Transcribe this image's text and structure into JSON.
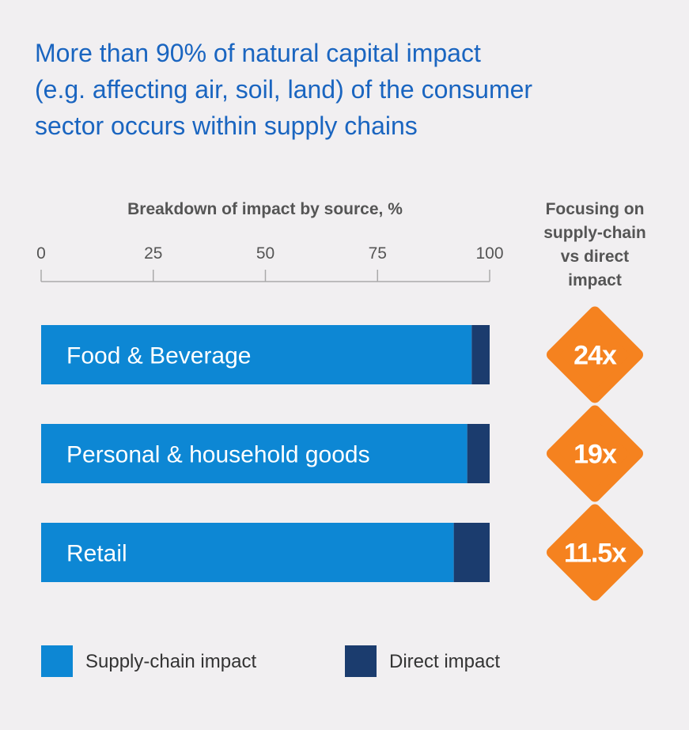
{
  "title": {
    "lines": [
      "More than 90% of natural capital impact",
      "(e.g. affecting air, soil, land) of the consumer",
      "sector occurs within supply chains"
    ]
  },
  "chart_data": {
    "type": "bar",
    "orientation": "horizontal",
    "stacked": true,
    "xlabel": "Breakdown of impact by source, %",
    "xlim": [
      0,
      100
    ],
    "ticks": [
      "0",
      "25",
      "50",
      "75",
      "100"
    ],
    "tick_values": [
      0,
      25,
      50,
      75,
      100
    ],
    "categories": [
      "Food & Beverage",
      "Personal & household goods",
      "Retail"
    ],
    "series": [
      {
        "name": "Supply-chain impact",
        "color": "#0d87d4",
        "values": [
          96,
          95,
          92
        ]
      },
      {
        "name": "Direct impact",
        "color": "#1b3c6e",
        "values": [
          4,
          5,
          8
        ]
      }
    ],
    "side_title": [
      "Focusing on",
      "supply-chain",
      "vs direct",
      "impact"
    ],
    "multipliers": [
      "24x",
      "19x",
      "11.5x"
    ],
    "multiplier_color": "#f5821f",
    "legend_position": "bottom"
  }
}
